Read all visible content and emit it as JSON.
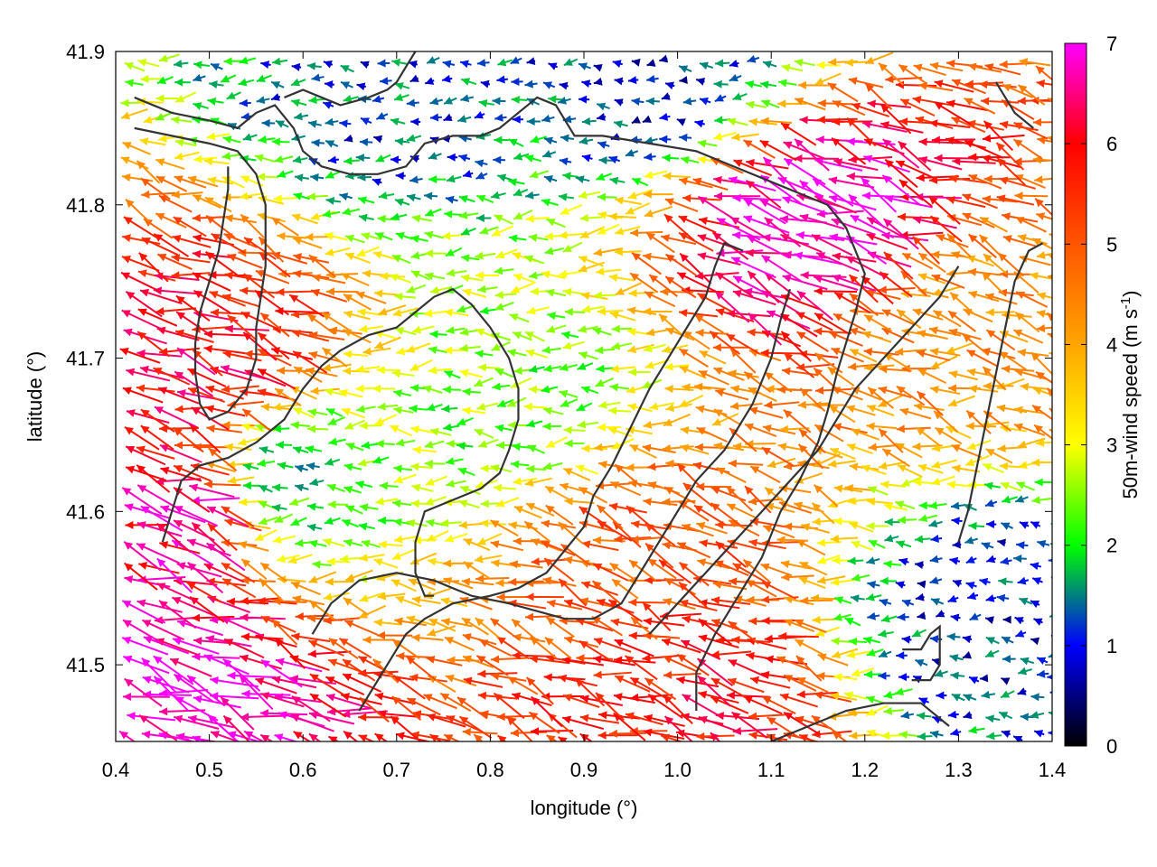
{
  "chart_data": {
    "type": "vector-field",
    "title": "",
    "xlabel": "longitude (°)",
    "ylabel": "latitude (°)",
    "colorbar_label": "50m-wind speed (m s",
    "colorbar_label_sup": "-1",
    "colorbar_label_end": ")",
    "xlim": [
      0.4,
      1.4
    ],
    "ylim": [
      41.45,
      41.9
    ],
    "xticks": [
      "0.4",
      "0.5",
      "0.6",
      "0.7",
      "0.8",
      "0.9",
      "1.0",
      "1.1",
      "1.2",
      "1.3",
      "1.4"
    ],
    "xtick_values": [
      0.4,
      0.5,
      0.6,
      0.7,
      0.8,
      0.9,
      1.0,
      1.1,
      1.2,
      1.3,
      1.4
    ],
    "yticks": [
      "41.5",
      "41.6",
      "41.7",
      "41.8",
      "41.9"
    ],
    "ytick_values": [
      41.5,
      41.6,
      41.7,
      41.8,
      41.9
    ],
    "colorbar_range": [
      0,
      7
    ],
    "colorbar_ticks": [
      "0",
      "1",
      "2",
      "3",
      "4",
      "5",
      "6",
      "7"
    ],
    "colorbar_tick_values": [
      0,
      1,
      2,
      3,
      4,
      5,
      6,
      7
    ],
    "colormap": [
      {
        "v": 0,
        "color": "#000000"
      },
      {
        "v": 1,
        "color": "#0000ff"
      },
      {
        "v": 1.5,
        "color": "#008080"
      },
      {
        "v": 2,
        "color": "#00ff00"
      },
      {
        "v": 3,
        "color": "#ffff00"
      },
      {
        "v": 4,
        "color": "#ffa500"
      },
      {
        "v": 5,
        "color": "#ff5500"
      },
      {
        "v": 6,
        "color": "#ff0000"
      },
      {
        "v": 7,
        "color": "#ff00ff"
      }
    ],
    "wind_speed_regions": [
      {
        "lon": 1.12,
        "lat": 41.8,
        "speed": 7.0
      },
      {
        "lon": 0.47,
        "lat": 41.7,
        "speed": 6.0
      },
      {
        "lon": 0.44,
        "lat": 41.48,
        "speed": 7.0
      },
      {
        "lon": 1.0,
        "lat": 41.48,
        "speed": 5.8
      },
      {
        "lon": 0.58,
        "lat": 41.62,
        "speed": 2.0
      },
      {
        "lon": 1.32,
        "lat": 41.53,
        "speed": 1.1
      },
      {
        "lon": 0.82,
        "lat": 41.67,
        "speed": 2.4
      },
      {
        "lon": 0.7,
        "lat": 41.88,
        "speed": 1.2
      },
      {
        "lon": 0.98,
        "lat": 41.88,
        "speed": 1.0
      },
      {
        "lon": 1.3,
        "lat": 41.72,
        "speed": 4.3
      },
      {
        "lon": 0.95,
        "lat": 41.58,
        "speed": 5.0
      },
      {
        "lon": 0.45,
        "lat": 41.6,
        "speed": 6.5
      }
    ],
    "contours": [
      [
        [
          0.42,
          41.87
        ],
        [
          0.46,
          41.86
        ],
        [
          0.5,
          41.855
        ],
        [
          0.53,
          41.85
        ],
        [
          0.55,
          41.86
        ],
        [
          0.57,
          41.865
        ],
        [
          0.59,
          41.85
        ],
        [
          0.6,
          41.835
        ],
        [
          0.62,
          41.825
        ],
        [
          0.65,
          41.82
        ],
        [
          0.68,
          41.82
        ],
        [
          0.71,
          41.825
        ],
        [
          0.73,
          41.84
        ],
        [
          0.76,
          41.845
        ],
        [
          0.79,
          41.845
        ],
        [
          0.81,
          41.85
        ],
        [
          0.83,
          41.86
        ],
        [
          0.84,
          41.865
        ],
        [
          0.85,
          41.87
        ],
        [
          0.87,
          41.865
        ],
        [
          0.88,
          41.855
        ],
        [
          0.89,
          41.845
        ],
        [
          0.92,
          41.845
        ],
        [
          0.97,
          41.84
        ],
        [
          1.02,
          41.835
        ],
        [
          1.06,
          41.825
        ],
        [
          1.1,
          41.815
        ],
        [
          1.14,
          41.805
        ],
        [
          1.16,
          41.8
        ],
        [
          1.18,
          41.785
        ],
        [
          1.19,
          41.77
        ],
        [
          1.2,
          41.755
        ],
        [
          1.19,
          41.73
        ],
        [
          1.18,
          41.71
        ],
        [
          1.17,
          41.69
        ],
        [
          1.16,
          41.665
        ],
        [
          1.15,
          41.645
        ],
        [
          1.13,
          41.62
        ],
        [
          1.11,
          41.6
        ],
        [
          1.09,
          41.57
        ],
        [
          1.07,
          41.55
        ],
        [
          1.04,
          41.52
        ],
        [
          1.02,
          41.495
        ],
        [
          1.02,
          41.47
        ]
      ],
      [
        [
          0.42,
          41.85
        ],
        [
          0.46,
          41.845
        ],
        [
          0.5,
          41.84
        ],
        [
          0.53,
          41.835
        ],
        [
          0.55,
          41.82
        ],
        [
          0.56,
          41.8
        ],
        [
          0.56,
          41.78
        ],
        [
          0.56,
          41.76
        ],
        [
          0.555,
          41.74
        ],
        [
          0.55,
          41.72
        ],
        [
          0.55,
          41.7
        ],
        [
          0.54,
          41.68
        ],
        [
          0.52,
          41.665
        ],
        [
          0.5,
          41.66
        ],
        [
          0.49,
          41.67
        ],
        [
          0.485,
          41.69
        ],
        [
          0.485,
          41.71
        ],
        [
          0.49,
          41.73
        ],
        [
          0.5,
          41.75
        ],
        [
          0.51,
          41.77
        ],
        [
          0.515,
          41.79
        ],
        [
          0.52,
          41.81
        ],
        [
          0.52,
          41.825
        ]
      ],
      [
        [
          0.58,
          41.87
        ],
        [
          0.6,
          41.875
        ],
        [
          0.62,
          41.87
        ],
        [
          0.64,
          41.865
        ],
        [
          0.67,
          41.87
        ],
        [
          0.69,
          41.875
        ],
        [
          0.7,
          41.88
        ],
        [
          0.71,
          41.89
        ],
        [
          0.72,
          41.9
        ]
      ],
      [
        [
          0.45,
          41.58
        ],
        [
          0.46,
          41.6
        ],
        [
          0.47,
          41.62
        ],
        [
          0.49,
          41.63
        ],
        [
          0.52,
          41.635
        ],
        [
          0.55,
          41.645
        ],
        [
          0.58,
          41.66
        ],
        [
          0.6,
          41.68
        ],
        [
          0.62,
          41.695
        ],
        [
          0.64,
          41.705
        ],
        [
          0.67,
          41.715
        ],
        [
          0.7,
          41.72
        ],
        [
          0.72,
          41.73
        ],
        [
          0.74,
          41.74
        ],
        [
          0.76,
          41.745
        ],
        [
          0.78,
          41.735
        ],
        [
          0.8,
          41.72
        ],
        [
          0.82,
          41.7
        ],
        [
          0.83,
          41.68
        ],
        [
          0.83,
          41.66
        ],
        [
          0.82,
          41.64
        ],
        [
          0.81,
          41.625
        ],
        [
          0.79,
          41.615
        ],
        [
          0.77,
          41.61
        ],
        [
          0.75,
          41.605
        ],
        [
          0.73,
          41.6
        ],
        [
          0.72,
          41.58
        ],
        [
          0.72,
          41.56
        ],
        [
          0.73,
          41.545
        ],
        [
          0.74,
          41.545
        ]
      ],
      [
        [
          0.66,
          41.47
        ],
        [
          0.69,
          41.5
        ],
        [
          0.71,
          41.52
        ],
        [
          0.73,
          41.53
        ],
        [
          0.76,
          41.54
        ],
        [
          0.8,
          41.545
        ],
        [
          0.83,
          41.55
        ],
        [
          0.86,
          41.56
        ],
        [
          0.88,
          41.575
        ],
        [
          0.9,
          41.59
        ],
        [
          0.91,
          41.61
        ],
        [
          0.93,
          41.63
        ],
        [
          0.95,
          41.655
        ],
        [
          0.97,
          41.68
        ],
        [
          0.99,
          41.7
        ],
        [
          1.01,
          41.72
        ],
        [
          1.03,
          41.74
        ],
        [
          1.04,
          41.76
        ],
        [
          1.05,
          41.775
        ],
        [
          1.07,
          41.77
        ]
      ],
      [
        [
          0.61,
          41.52
        ],
        [
          0.63,
          41.54
        ],
        [
          0.66,
          41.555
        ],
        [
          0.7,
          41.56
        ],
        [
          0.74,
          41.555
        ],
        [
          0.78,
          41.545
        ],
        [
          0.82,
          41.54
        ],
        [
          0.85,
          41.535
        ],
        [
          0.88,
          41.53
        ],
        [
          0.91,
          41.53
        ],
        [
          0.94,
          41.54
        ],
        [
          0.96,
          41.56
        ],
        [
          0.98,
          41.58
        ],
        [
          1.0,
          41.6
        ],
        [
          1.02,
          41.62
        ],
        [
          1.05,
          41.64
        ],
        [
          1.08,
          41.67
        ],
        [
          1.1,
          41.7
        ],
        [
          1.11,
          41.725
        ],
        [
          1.12,
          41.745
        ]
      ],
      [
        [
          1.1,
          41.45
        ],
        [
          1.14,
          41.46
        ],
        [
          1.18,
          41.47
        ],
        [
          1.22,
          41.475
        ],
        [
          1.26,
          41.475
        ],
        [
          1.29,
          41.46
        ]
      ],
      [
        [
          1.24,
          41.51
        ],
        [
          1.26,
          41.51
        ],
        [
          1.27,
          41.52
        ],
        [
          1.28,
          41.525
        ],
        [
          1.28,
          41.5
        ],
        [
          1.27,
          41.49
        ],
        [
          1.25,
          41.49
        ]
      ],
      [
        [
          1.3,
          41.58
        ],
        [
          1.31,
          41.6
        ],
        [
          1.32,
          41.63
        ],
        [
          1.33,
          41.66
        ],
        [
          1.34,
          41.69
        ],
        [
          1.35,
          41.72
        ],
        [
          1.36,
          41.75
        ],
        [
          1.375,
          41.77
        ],
        [
          1.39,
          41.775
        ]
      ],
      [
        [
          0.97,
          41.52
        ],
        [
          1.0,
          41.54
        ],
        [
          1.03,
          41.56
        ],
        [
          1.06,
          41.58
        ],
        [
          1.09,
          41.6
        ],
        [
          1.12,
          41.62
        ],
        [
          1.15,
          41.64
        ],
        [
          1.17,
          41.66
        ],
        [
          1.19,
          41.68
        ],
        [
          1.22,
          41.7
        ],
        [
          1.25,
          41.72
        ],
        [
          1.28,
          41.74
        ],
        [
          1.3,
          41.76
        ]
      ],
      [
        [
          1.34,
          41.88
        ],
        [
          1.36,
          41.86
        ],
        [
          1.38,
          41.85
        ]
      ]
    ]
  }
}
